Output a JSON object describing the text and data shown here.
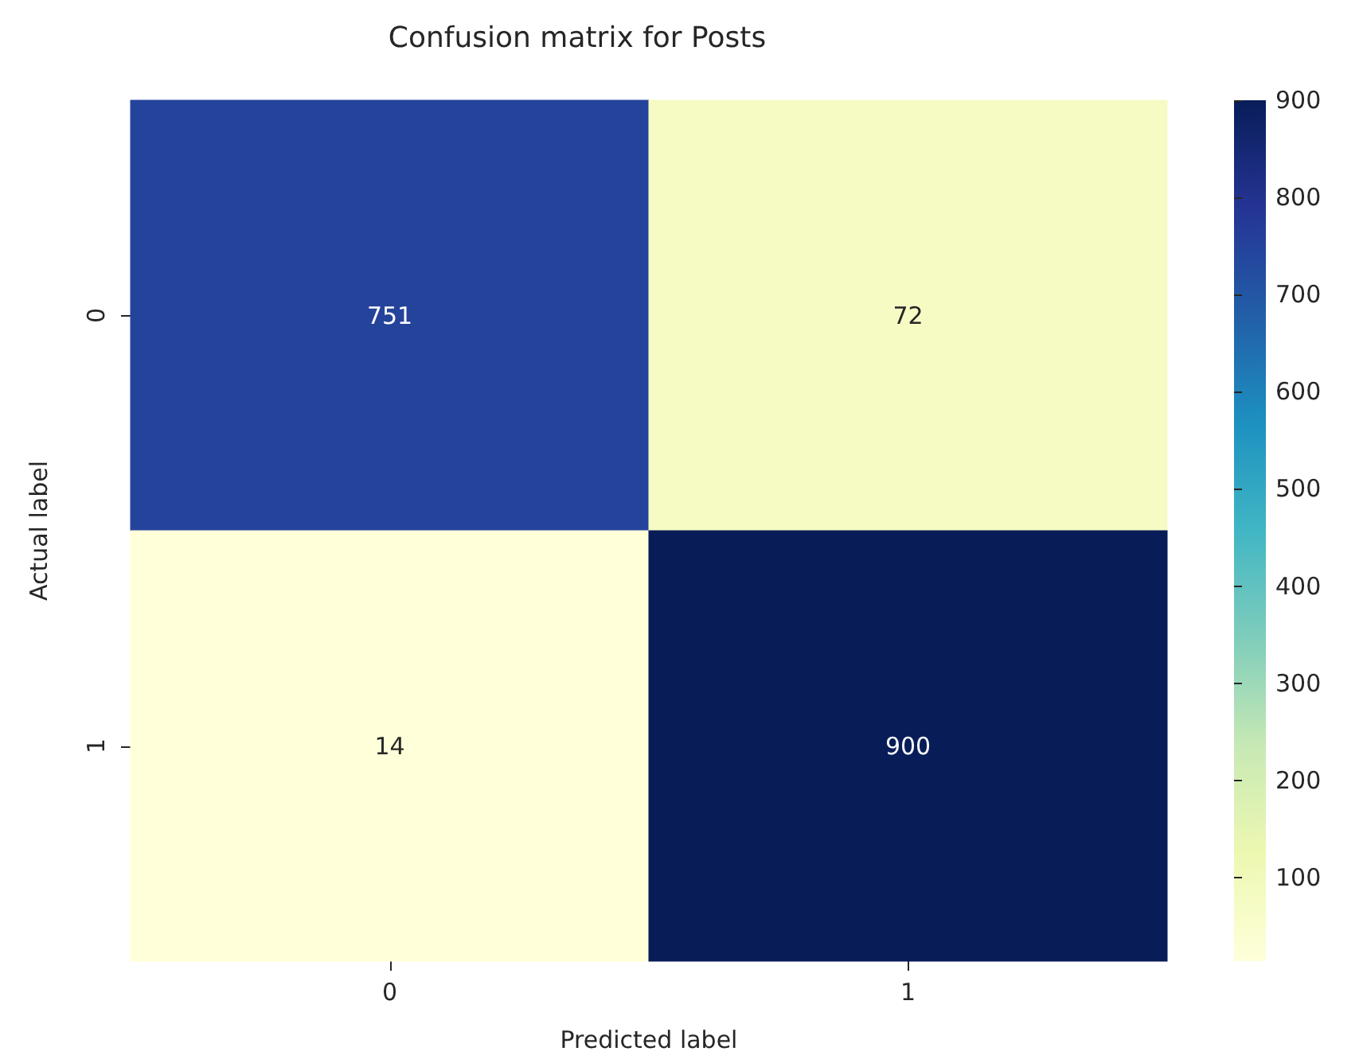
{
  "chart_data": {
    "type": "heatmap",
    "title": "Confusion matrix for Posts",
    "xlabel": "Predicted label",
    "ylabel": "Actual label",
    "categories": [
      "0",
      "1"
    ],
    "y_categories": [
      "0",
      "1"
    ],
    "cells": [
      [
        751,
        72
      ],
      [
        14,
        900
      ]
    ],
    "data_labels": true,
    "clim": [
      14,
      900
    ],
    "cticks": [
      100,
      200,
      300,
      400,
      500,
      600,
      700,
      800,
      900
    ]
  }
}
